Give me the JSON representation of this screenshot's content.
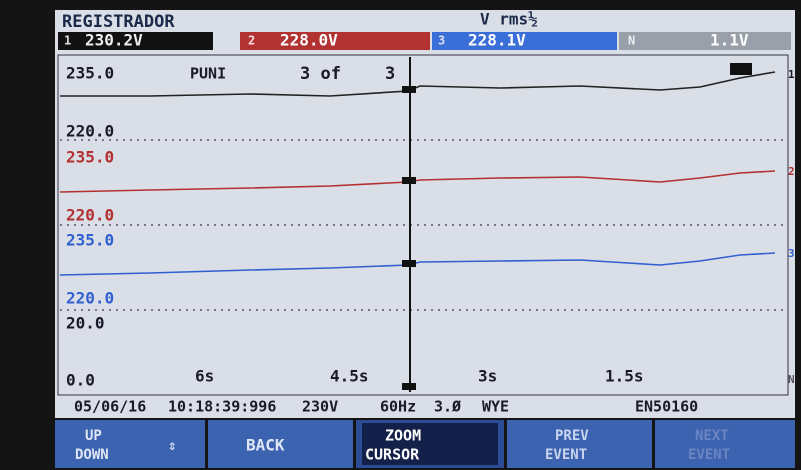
{
  "header": {
    "title": "REGISTRADOR",
    "measure": "V rms½",
    "channels": [
      {
        "id": "1",
        "value": "230.2V"
      },
      {
        "id": "2",
        "value": "228.0V"
      },
      {
        "id": "3",
        "value": "228.1V"
      },
      {
        "id": "N",
        "value": "1.1V"
      }
    ]
  },
  "plot": {
    "top_label": "235.0",
    "parameter": "PUNI",
    "page": "3 of",
    "page_total": "3",
    "scales": [
      {
        "high": "235.0",
        "low": "220.0"
      },
      {
        "high": "235.0",
        "low": "220.0"
      },
      {
        "high": "235.0",
        "low": "220.0"
      },
      {
        "high": "20.0",
        "low": "0.0"
      }
    ],
    "trace_ids": [
      "1",
      "2",
      "3",
      "N"
    ],
    "time_labels": [
      "6s",
      "4.5s",
      "3s",
      "1.5s"
    ]
  },
  "status": {
    "date": "05/06/16",
    "time": "10:18:39:996",
    "nominal": "230V",
    "frequency": "60Hz",
    "phases": "3.Ø",
    "config": "WYE",
    "standard": "EN50160"
  },
  "softkeys": [
    {
      "line1": "UP",
      "line2": "DOWN"
    },
    {
      "line1": "BACK"
    },
    {
      "line1": "ZOOM",
      "line2": "CURSOR"
    },
    {
      "line1": "PREV",
      "line2": "EVENT"
    },
    {
      "line1": "NEXT",
      "line2": "EVENT"
    }
  ]
}
